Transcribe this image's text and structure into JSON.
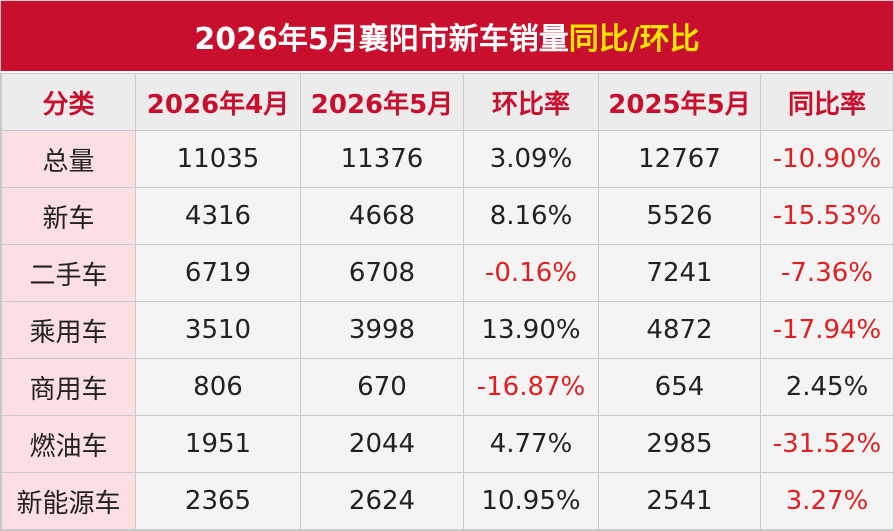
{
  "header": {
    "title_main": "2026年5月襄阳市新车销量",
    "title_highlight": "同比/环比"
  },
  "table": {
    "columns": [
      "分类",
      "2026年4月",
      "2026年5月",
      "环比率",
      "2025年5月",
      "同比率"
    ],
    "rows": [
      [
        "总量",
        "11035",
        "11376",
        "3.09%",
        "12767",
        "-10.90%"
      ],
      [
        "新车",
        "4316",
        "4668",
        "8.16%",
        "5526",
        "-15.53%"
      ],
      [
        "二手车",
        "6719",
        "6708",
        "-0.16%",
        "7241",
        "-7.36%"
      ],
      [
        "乘用车",
        "3510",
        "3998",
        "13.90%",
        "4872",
        "-17.94%"
      ],
      [
        "商用车",
        "806",
        "670",
        "-16.87%",
        "654",
        "2.45%"
      ],
      [
        "燃油车",
        "1951",
        "2044",
        "4.77%",
        "2985",
        "-31.52%"
      ],
      [
        "新能源车",
        "2365",
        "2624",
        "10.95%",
        "2541",
        "3.27%"
      ]
    ]
  }
}
